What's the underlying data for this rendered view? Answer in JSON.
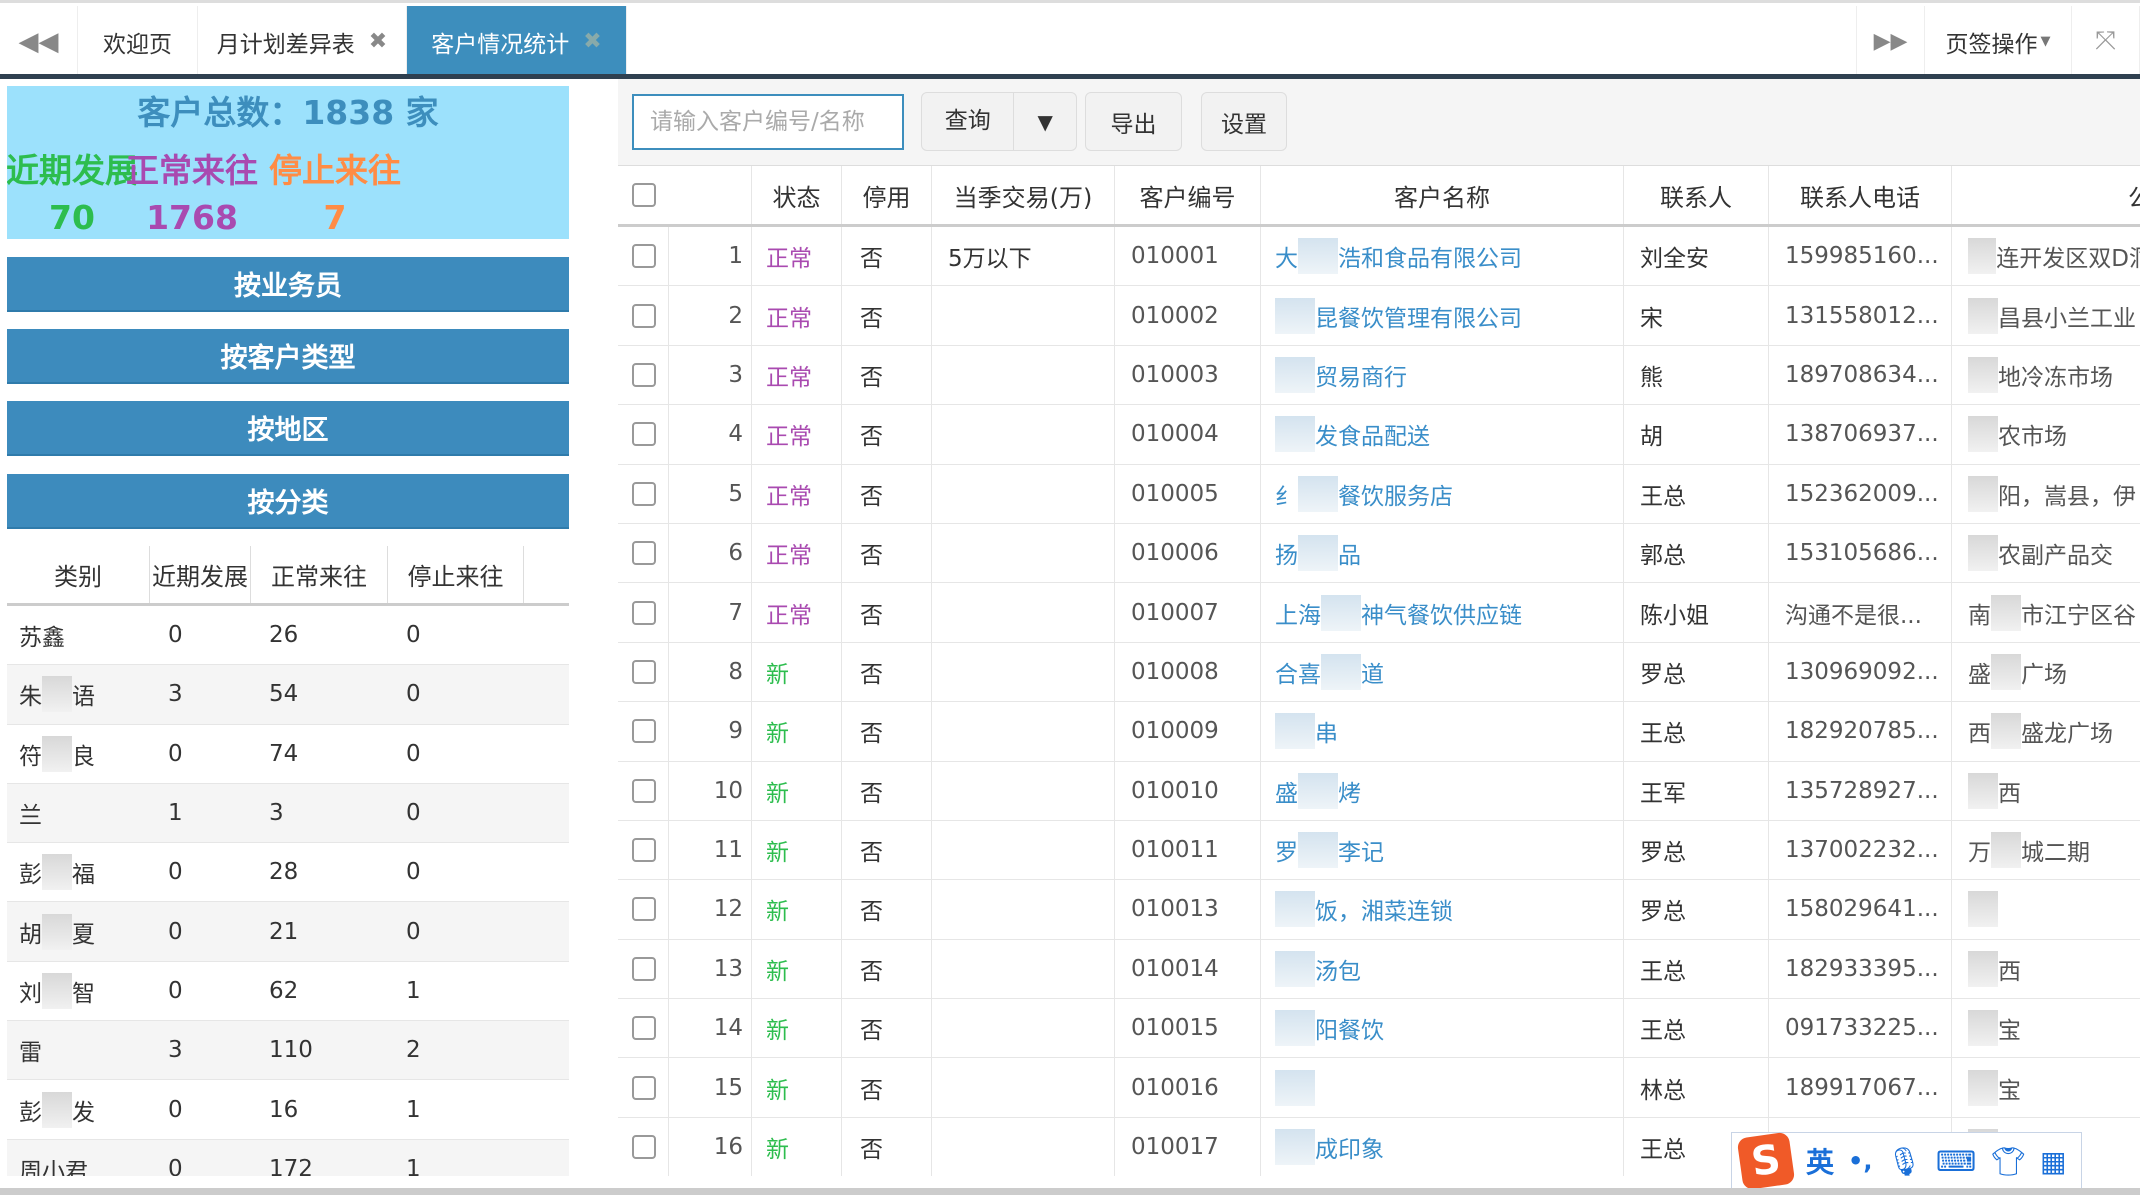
{
  "tabs": {
    "prev_icon": "double-left-arrow",
    "items": [
      {
        "label": "欢迎页",
        "closable": false
      },
      {
        "label": "月计划差异表",
        "closable": true
      },
      {
        "label": "客户情况统计",
        "closable": true,
        "active": true
      }
    ],
    "next_icon": "double-right-arrow",
    "ops_label": "页签操作",
    "fullscreen_icon": "fullscreen-icon",
    "close_glyph": "✖"
  },
  "summary": {
    "title": "客户总数：1838 家",
    "stats": [
      {
        "label": "近期发展",
        "value": "70",
        "color": "#2dbd4e"
      },
      {
        "label": "正常来往",
        "value": "1768",
        "color": "#a94ab0"
      },
      {
        "label": "停止来往",
        "value": "7",
        "color": "#ff8c45"
      }
    ]
  },
  "group_buttons": [
    "按业务员",
    "按客户类型",
    "按地区",
    "按分类"
  ],
  "left_table": {
    "headers": [
      "类别",
      "近期发展",
      "正常来往",
      "停止来往"
    ],
    "rows": [
      [
        "苏鑫",
        "0",
        "26",
        "0"
      ],
      [
        "朱 语",
        "3",
        "54",
        "0"
      ],
      [
        "符 良",
        "0",
        "74",
        "0"
      ],
      [
        "兰",
        "1",
        "3",
        "0"
      ],
      [
        "彭 福",
        "0",
        "28",
        "0"
      ],
      [
        "胡 夏",
        "0",
        "21",
        "0"
      ],
      [
        "刘 智",
        "0",
        "62",
        "1"
      ],
      [
        "雷",
        "3",
        "110",
        "2"
      ],
      [
        "彭 发",
        "0",
        "16",
        "1"
      ],
      [
        "周小君",
        "0",
        "172",
        "1"
      ]
    ]
  },
  "toolbar": {
    "search_placeholder": "请输入客户编号/名称",
    "search_value": "",
    "query_label": "查询",
    "export_label": "导出",
    "settings_label": "设置"
  },
  "grid": {
    "headers": [
      "状态",
      "停用",
      "当季交易(万)",
      "客户编号",
      "客户名称",
      "联系人",
      "联系人电话",
      "公"
    ],
    "status_colors": {
      "正常": "#a94ab0",
      "新": "#2dbd4e"
    },
    "rows": [
      [
        "1",
        "正常",
        "否",
        "5万以下",
        "010001",
        "大 浩和食品有限公司",
        "刘全安",
        "159985160...",
        "连开发区双D洞"
      ],
      [
        "2",
        "正常",
        "否",
        "",
        "010002",
        "昆餐饮管理有限公司",
        "宋",
        "131558012...",
        "昌县小兰工业"
      ],
      [
        "3",
        "正常",
        "否",
        "",
        "010003",
        "贸易商行",
        "熊",
        "189708634...",
        "地冷冻市场"
      ],
      [
        "4",
        "正常",
        "否",
        "",
        "010004",
        "发食品配送",
        "胡",
        "138706937...",
        "农市场"
      ],
      [
        "5",
        "正常",
        "否",
        "",
        "010005",
        "纟 餐饮服务店",
        "王总",
        "152362009...",
        "阳，嵩县，伊"
      ],
      [
        "6",
        "正常",
        "否",
        "",
        "010006",
        "扬 品",
        "郭总",
        "153105686...",
        "农副产品交"
      ],
      [
        "7",
        "正常",
        "否",
        "",
        "010007",
        "上海 神气餐饮供应链",
        "陈小姐",
        "沟通不是很...",
        "南 市江宁区谷"
      ],
      [
        "8",
        "新",
        "否",
        "",
        "010008",
        "合喜 道",
        "罗总",
        "130969092...",
        "盛 广场"
      ],
      [
        "9",
        "新",
        "否",
        "",
        "010009",
        "串",
        "王总",
        "182920785...",
        "西 盛龙广场"
      ],
      [
        "10",
        "新",
        "否",
        "",
        "010010",
        "盛 烤",
        "王军",
        "135728927...",
        "西"
      ],
      [
        "11",
        "新",
        "否",
        "",
        "010011",
        "罗 李记",
        "罗总",
        "137002232...",
        "万 城二期"
      ],
      [
        "12",
        "新",
        "否",
        "",
        "010013",
        "饭，湘菜连锁",
        "罗总",
        "158029641...",
        ""
      ],
      [
        "13",
        "新",
        "否",
        "",
        "010014",
        "汤包",
        "王总",
        "182933395...",
        "西"
      ],
      [
        "14",
        "新",
        "否",
        "",
        "010015",
        "阳餐饮",
        "王总",
        "091733225...",
        "宝"
      ],
      [
        "15",
        "新",
        "否",
        "",
        "010016",
        "",
        "林总",
        "189917067...",
        "宝"
      ],
      [
        "16",
        "新",
        "否",
        "",
        "010017",
        "成印象",
        "王总",
        "",
        ""
      ]
    ]
  },
  "ime": {
    "lang": "英",
    "punct": "•,"
  }
}
